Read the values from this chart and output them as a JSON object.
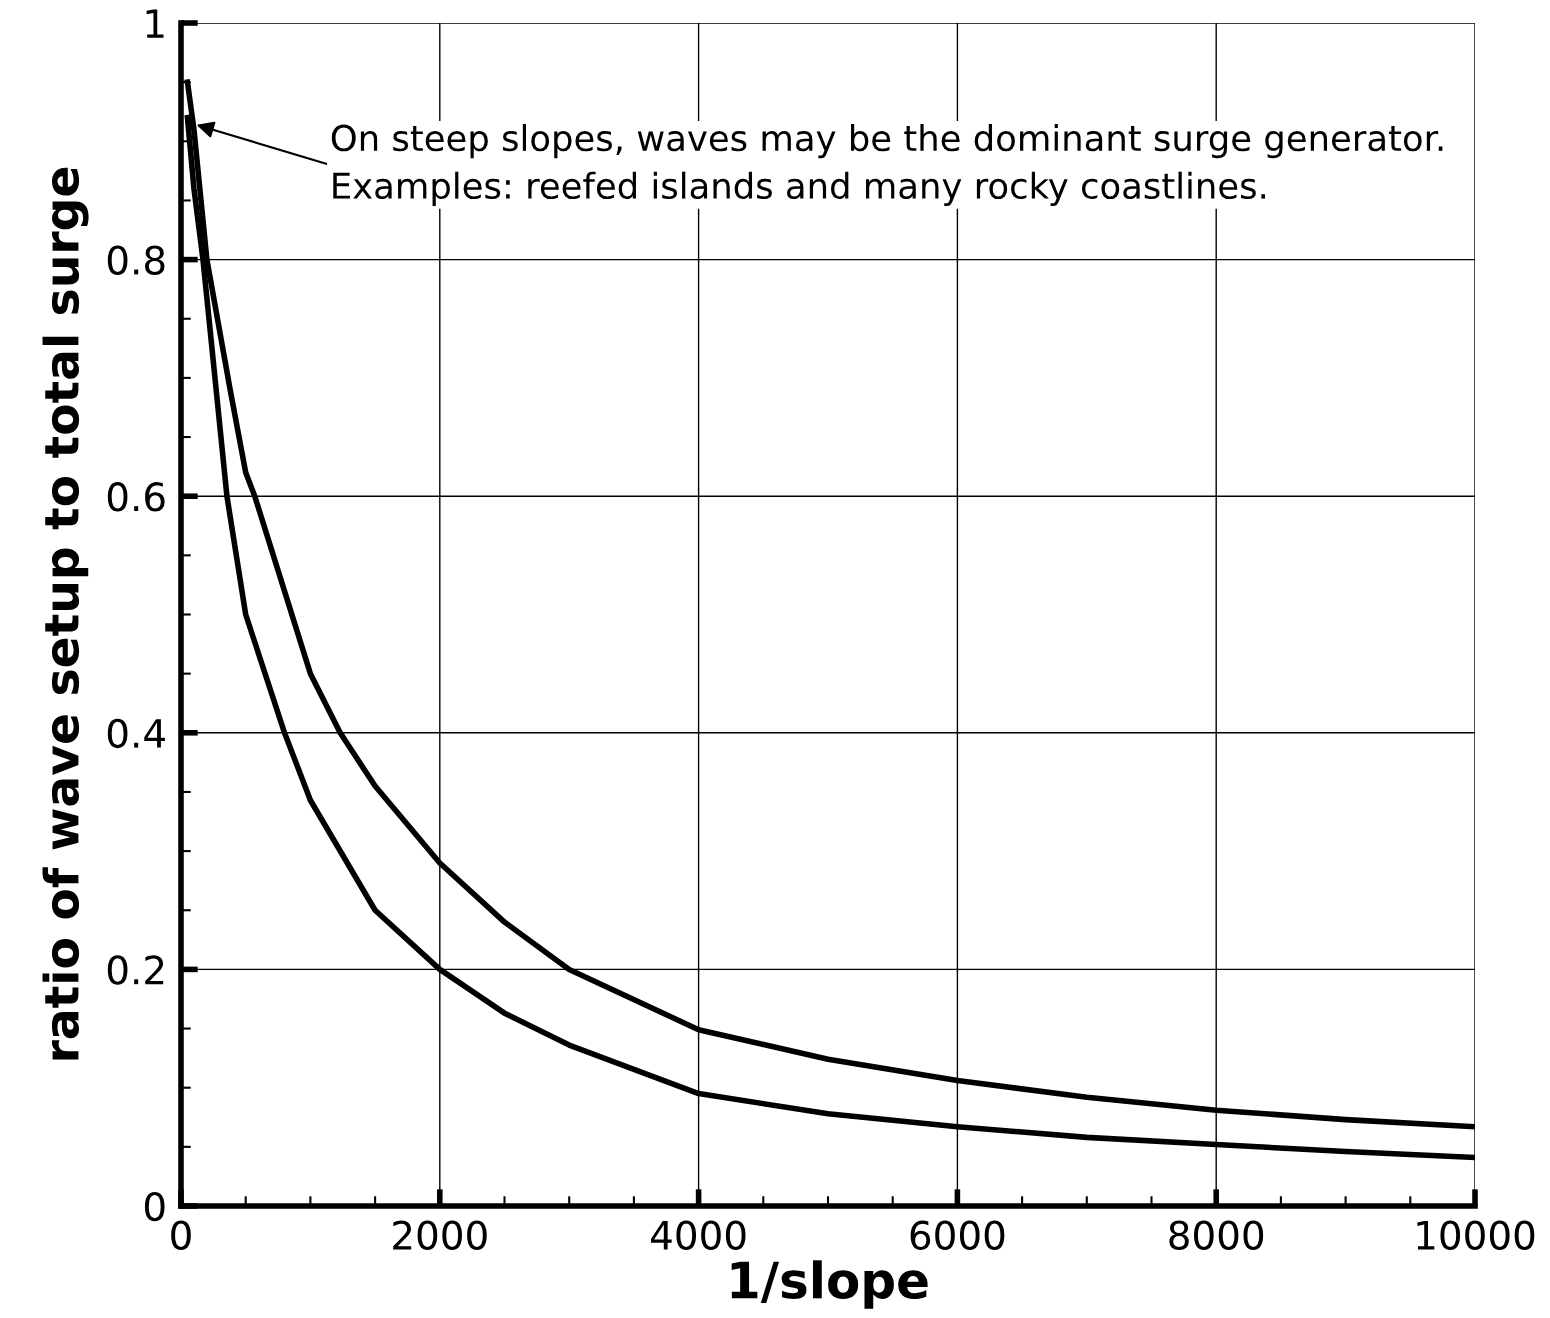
{
  "chart_data": {
    "type": "line",
    "xlabel": "1/slope",
    "ylabel": "ratio of wave setup to total surge",
    "xlim": [
      0,
      10000
    ],
    "ylim": [
      0,
      1
    ],
    "xticks": [
      0,
      2000,
      4000,
      6000,
      8000,
      10000
    ],
    "yticks": [
      0,
      0.2,
      0.4,
      0.6,
      0.8,
      1
    ],
    "grid": true,
    "marker": "none",
    "line_style": "solid",
    "series": [
      {
        "color": "#000000",
        "x": [
          50,
          100,
          200,
          380,
          500,
          570,
          1000,
          1230,
          1500,
          2000,
          2500,
          3000,
          4000,
          5000,
          6000,
          7000,
          8000,
          9000,
          10000
        ],
        "values": [
          0.95,
          0.91,
          0.8,
          0.69,
          0.62,
          0.6,
          0.45,
          0.4,
          0.355,
          0.29,
          0.24,
          0.2,
          0.149,
          0.124,
          0.106,
          0.092,
          0.081,
          0.073,
          0.067
        ]
      },
      {
        "color": "#000000",
        "x": [
          50,
          100,
          170,
          355,
          500,
          800,
          1000,
          1500,
          2000,
          2500,
          3000,
          4000,
          5000,
          6000,
          7000,
          8000,
          9000,
          10000
        ],
        "values": [
          0.92,
          0.86,
          0.8,
          0.6,
          0.5,
          0.4,
          0.343,
          0.25,
          0.2,
          0.163,
          0.136,
          0.095,
          0.078,
          0.067,
          0.058,
          0.052,
          0.046,
          0.041
        ]
      }
    ],
    "annotations": [
      {
        "text": "On steep slopes, waves may be the dominant surge generator.\nExamples: reefed islands and many rocky coastlines.",
        "x": 120,
        "y": 0.914
      }
    ]
  }
}
